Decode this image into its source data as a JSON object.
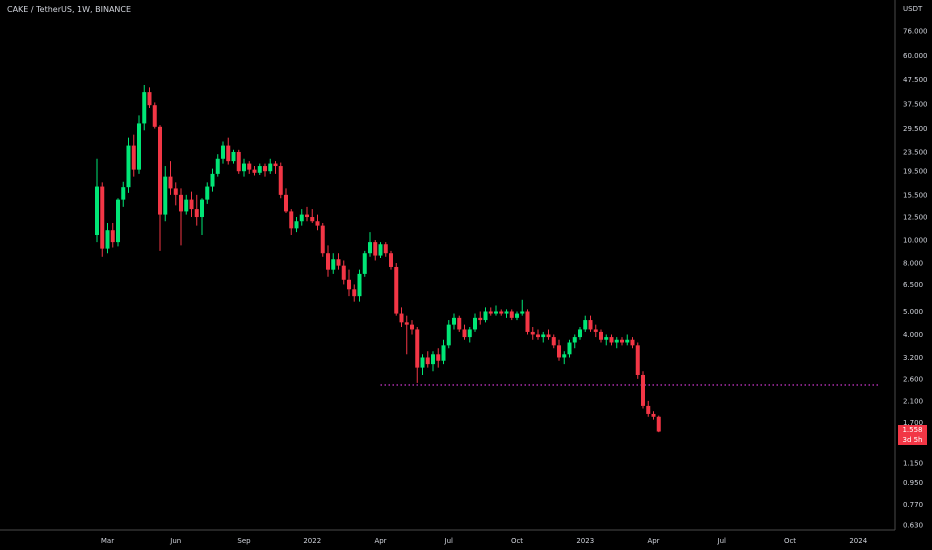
{
  "header": {
    "title": "CAKE / TetherUS, 1W, BINANCE"
  },
  "axis": {
    "unit_label": "USDT"
  },
  "price_tag": {
    "last_price": "1.558",
    "countdown": "3d 5h"
  },
  "colors": {
    "background": "#000000",
    "up": "#00e676",
    "down": "#f23645",
    "level_line": "#ff44ff",
    "axis_line": "#4a4a4a",
    "text": "#d1d4dc"
  },
  "chart_data": {
    "type": "candlestick",
    "title": "CAKE / TetherUS, 1W, BINANCE",
    "yscale": "log",
    "ylim": [
      0.6,
      95
    ],
    "ytick_labels": [
      "76.000",
      "60.000",
      "47.500",
      "37.500",
      "29.500",
      "23.500",
      "19.500",
      "15.500",
      "12.500",
      "10.000",
      "8.000",
      "6.500",
      "5.000",
      "4.000",
      "3.200",
      "2.600",
      "2.100",
      "1.700",
      "1.150",
      "0.950",
      "0.770",
      "0.630"
    ],
    "xtick_labels": [
      "Mar",
      "Jun",
      "Sep",
      "2022",
      "Apr",
      "Jul",
      "Oct",
      "2023",
      "Apr",
      "Jul",
      "Oct",
      "2024"
    ],
    "xtick_weeks": [
      2,
      15,
      28,
      41,
      54,
      67,
      80,
      93,
      106,
      119,
      132,
      145
    ],
    "grid": false,
    "support_level": 2.45,
    "support_level_start_week": 54,
    "support_level_end_week": 149,
    "ohlc": [
      [
        10.5,
        22.0,
        9.8,
        16.8
      ],
      [
        16.8,
        17.5,
        8.5,
        9.2
      ],
      [
        9.2,
        11.8,
        8.8,
        11.0
      ],
      [
        11.0,
        11.8,
        9.3,
        9.8
      ],
      [
        9.8,
        15.0,
        9.4,
        14.8
      ],
      [
        14.8,
        17.6,
        13.8,
        16.7
      ],
      [
        16.7,
        27.0,
        15.8,
        25.0
      ],
      [
        25.0,
        27.8,
        18.5,
        19.8
      ],
      [
        19.8,
        33.5,
        19.0,
        31.0
      ],
      [
        31.0,
        45.0,
        29.0,
        42.0
      ],
      [
        42.0,
        44.0,
        36.0,
        37.0
      ],
      [
        37.0,
        38.0,
        29.5,
        30.0
      ],
      [
        30.0,
        30.5,
        9.0,
        12.8
      ],
      [
        12.8,
        20.5,
        12.0,
        18.5
      ],
      [
        18.5,
        21.5,
        15.5,
        16.5
      ],
      [
        16.5,
        17.5,
        14.0,
        15.5
      ],
      [
        15.5,
        16.5,
        9.5,
        13.2
      ],
      [
        13.2,
        15.5,
        12.8,
        14.8
      ],
      [
        14.8,
        16.0,
        12.5,
        13.5
      ],
      [
        13.5,
        15.5,
        11.5,
        12.5
      ],
      [
        12.5,
        15.0,
        10.5,
        14.8
      ],
      [
        14.8,
        17.5,
        14.2,
        16.8
      ],
      [
        16.8,
        20.0,
        16.0,
        19.0
      ],
      [
        19.0,
        23.0,
        18.5,
        22.0
      ],
      [
        22.0,
        26.0,
        21.0,
        25.0
      ],
      [
        25.0,
        27.0,
        20.8,
        21.5
      ],
      [
        21.5,
        24.0,
        21.0,
        23.5
      ],
      [
        23.5,
        24.0,
        19.0,
        19.5
      ],
      [
        19.5,
        22.0,
        18.5,
        21.0
      ],
      [
        21.0,
        21.5,
        19.0,
        19.8
      ],
      [
        19.8,
        20.5,
        18.7,
        19.2
      ],
      [
        19.2,
        21.0,
        18.8,
        20.5
      ],
      [
        20.5,
        21.0,
        18.5,
        19.5
      ],
      [
        19.5,
        22.0,
        19.0,
        21.0
      ],
      [
        21.0,
        21.5,
        19.0,
        20.5
      ],
      [
        20.5,
        21.2,
        15.0,
        15.5
      ],
      [
        15.5,
        16.5,
        13.0,
        13.2
      ],
      [
        13.2,
        13.5,
        10.5,
        11.2
      ],
      [
        11.2,
        12.5,
        10.8,
        12.0
      ],
      [
        12.0,
        13.5,
        11.5,
        12.8
      ],
      [
        12.8,
        13.8,
        12.0,
        12.5
      ],
      [
        12.5,
        13.5,
        11.8,
        12.0
      ],
      [
        12.0,
        12.8,
        11.0,
        11.5
      ],
      [
        11.5,
        11.8,
        8.5,
        8.8
      ],
      [
        8.8,
        9.5,
        7.0,
        7.5
      ],
      [
        7.5,
        8.8,
        7.2,
        8.3
      ],
      [
        8.3,
        8.8,
        7.5,
        7.8
      ],
      [
        7.8,
        8.2,
        6.5,
        6.8
      ],
      [
        6.8,
        7.5,
        5.8,
        6.2
      ],
      [
        6.2,
        6.5,
        5.5,
        5.8
      ],
      [
        5.8,
        7.5,
        5.5,
        7.2
      ],
      [
        7.2,
        9.0,
        7.0,
        8.8
      ],
      [
        8.8,
        10.8,
        8.5,
        9.8
      ],
      [
        9.8,
        10.0,
        8.2,
        8.6
      ],
      [
        8.6,
        9.8,
        8.4,
        9.6
      ],
      [
        9.6,
        9.8,
        8.5,
        8.8
      ],
      [
        8.8,
        9.0,
        7.5,
        7.7
      ],
      [
        7.7,
        8.0,
        4.8,
        4.9
      ],
      [
        4.9,
        5.2,
        4.3,
        4.5
      ],
      [
        4.5,
        4.8,
        3.3,
        4.4
      ],
      [
        4.4,
        4.6,
        4.0,
        4.2
      ],
      [
        4.2,
        4.3,
        2.5,
        2.9
      ],
      [
        2.9,
        3.3,
        2.7,
        3.2
      ],
      [
        3.2,
        3.4,
        2.9,
        3.0
      ],
      [
        3.0,
        3.4,
        2.8,
        3.3
      ],
      [
        3.3,
        3.5,
        2.9,
        3.1
      ],
      [
        3.1,
        3.8,
        3.0,
        3.6
      ],
      [
        3.6,
        4.6,
        3.5,
        4.4
      ],
      [
        4.4,
        4.9,
        4.2,
        4.7
      ],
      [
        4.7,
        4.8,
        4.1,
        4.2
      ],
      [
        4.2,
        4.4,
        3.8,
        3.9
      ],
      [
        3.9,
        4.3,
        3.7,
        4.2
      ],
      [
        4.2,
        4.9,
        4.1,
        4.7
      ],
      [
        4.7,
        5.0,
        4.4,
        4.6
      ],
      [
        4.6,
        5.2,
        4.5,
        5.0
      ],
      [
        5.0,
        5.2,
        4.8,
        4.9
      ],
      [
        4.9,
        5.3,
        4.8,
        5.0
      ],
      [
        5.0,
        5.1,
        4.8,
        4.9
      ],
      [
        4.9,
        5.1,
        4.7,
        5.0
      ],
      [
        5.0,
        5.1,
        4.6,
        4.7
      ],
      [
        4.7,
        5.0,
        4.6,
        4.9
      ],
      [
        4.9,
        5.6,
        4.8,
        5.0
      ],
      [
        5.0,
        5.1,
        4.0,
        4.1
      ],
      [
        4.1,
        4.3,
        3.8,
        4.0
      ],
      [
        4.0,
        4.2,
        3.8,
        3.9
      ],
      [
        3.9,
        4.1,
        3.7,
        4.0
      ],
      [
        4.0,
        4.2,
        3.8,
        3.9
      ],
      [
        3.9,
        4.0,
        3.5,
        3.6
      ],
      [
        3.6,
        3.8,
        3.1,
        3.2
      ],
      [
        3.2,
        3.4,
        3.0,
        3.3
      ],
      [
        3.3,
        3.8,
        3.2,
        3.7
      ],
      [
        3.7,
        4.0,
        3.5,
        3.9
      ],
      [
        3.9,
        4.3,
        3.8,
        4.2
      ],
      [
        4.2,
        4.8,
        4.1,
        4.6
      ],
      [
        4.6,
        4.8,
        4.1,
        4.2
      ],
      [
        4.2,
        4.4,
        3.9,
        4.1
      ],
      [
        4.1,
        4.2,
        3.7,
        3.8
      ],
      [
        3.8,
        4.0,
        3.6,
        3.9
      ],
      [
        3.9,
        4.0,
        3.6,
        3.7
      ],
      [
        3.7,
        3.9,
        3.5,
        3.8
      ],
      [
        3.8,
        3.9,
        3.6,
        3.7
      ],
      [
        3.7,
        4.0,
        3.6,
        3.8
      ],
      [
        3.8,
        3.9,
        3.5,
        3.6
      ],
      [
        3.6,
        3.7,
        2.6,
        2.7
      ],
      [
        2.7,
        2.8,
        1.95,
        2.0
      ],
      [
        2.0,
        2.1,
        1.8,
        1.85
      ],
      [
        1.85,
        1.9,
        1.75,
        1.8
      ],
      [
        1.8,
        1.82,
        1.55,
        1.56
      ]
    ]
  }
}
